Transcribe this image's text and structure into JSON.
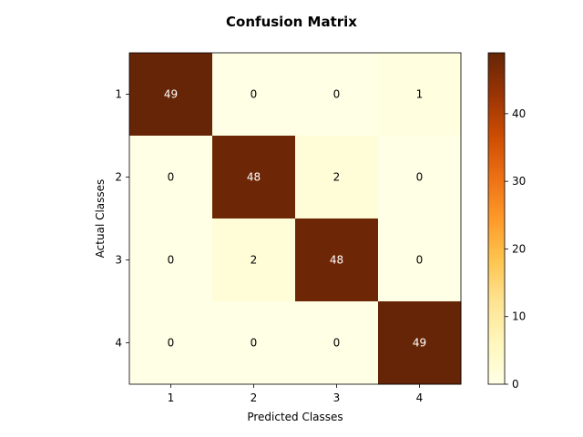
{
  "chart_data": {
    "type": "heatmap",
    "title": "Confusion Matrix",
    "xlabel": "Predicted Classes",
    "ylabel": "Actual Classes",
    "x_categories": [
      "1",
      "2",
      "3",
      "4"
    ],
    "y_categories": [
      "1",
      "2",
      "3",
      "4"
    ],
    "values": [
      [
        49,
        0,
        0,
        1
      ],
      [
        0,
        48,
        2,
        0
      ],
      [
        0,
        2,
        48,
        0
      ],
      [
        0,
        0,
        0,
        49
      ]
    ],
    "colormap": "YlOrBr",
    "vmin": 0,
    "vmax": 49,
    "colorbar_ticks": [
      "0",
      "10",
      "20",
      "30",
      "40"
    ],
    "annotation_colors": {
      "dark_cell": "#ffffff",
      "light_cell": "#000000"
    }
  }
}
